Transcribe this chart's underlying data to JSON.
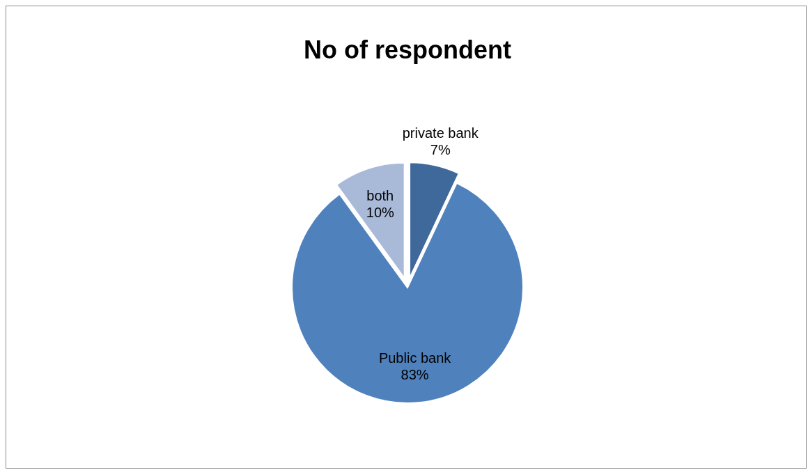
{
  "chart_data": {
    "type": "pie",
    "title": "No of respondent",
    "categories": [
      "private bank",
      "Public bank",
      "both"
    ],
    "values": [
      7,
      83,
      10
    ],
    "value_labels": [
      "7%",
      "83%",
      "10%"
    ],
    "colors": [
      "#3f689b",
      "#4f81bd",
      "#a9b9d8"
    ],
    "legend": false
  }
}
